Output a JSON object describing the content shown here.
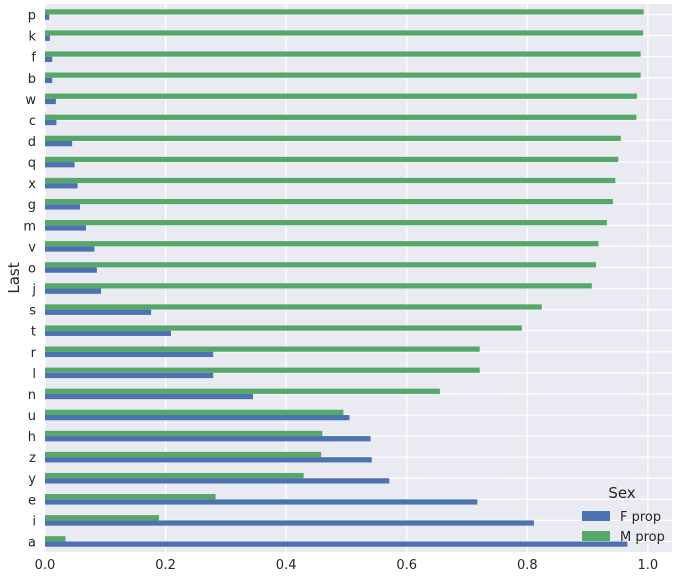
{
  "chart_data": {
    "type": "bar",
    "orientation": "horizontal",
    "ylabel": "Last",
    "xlim": [
      0,
      1.04
    ],
    "xticks": [
      "0.0",
      "0.2",
      "0.4",
      "0.6",
      "0.8",
      "1.0"
    ],
    "grid": true,
    "legend": {
      "title": "Sex",
      "position": "bottom-right"
    },
    "categories": [
      "p",
      "k",
      "f",
      "b",
      "w",
      "c",
      "d",
      "q",
      "x",
      "g",
      "m",
      "v",
      "o",
      "j",
      "s",
      "t",
      "r",
      "l",
      "n",
      "u",
      "h",
      "z",
      "y",
      "e",
      "i",
      "a"
    ],
    "series": [
      {
        "name": "F prop",
        "color": "#4c72b0",
        "values": [
          0.007,
          0.008,
          0.012,
          0.012,
          0.018,
          0.019,
          0.045,
          0.049,
          0.054,
          0.058,
          0.068,
          0.082,
          0.086,
          0.093,
          0.176,
          0.209,
          0.279,
          0.279,
          0.345,
          0.505,
          0.54,
          0.542,
          0.571,
          0.717,
          0.811,
          0.966
        ]
      },
      {
        "name": "M prop",
        "color": "#55a868",
        "values": [
          0.993,
          0.992,
          0.988,
          0.988,
          0.982,
          0.981,
          0.955,
          0.951,
          0.946,
          0.942,
          0.932,
          0.918,
          0.914,
          0.907,
          0.824,
          0.791,
          0.721,
          0.721,
          0.655,
          0.495,
          0.46,
          0.458,
          0.429,
          0.283,
          0.189,
          0.034
        ]
      }
    ]
  }
}
